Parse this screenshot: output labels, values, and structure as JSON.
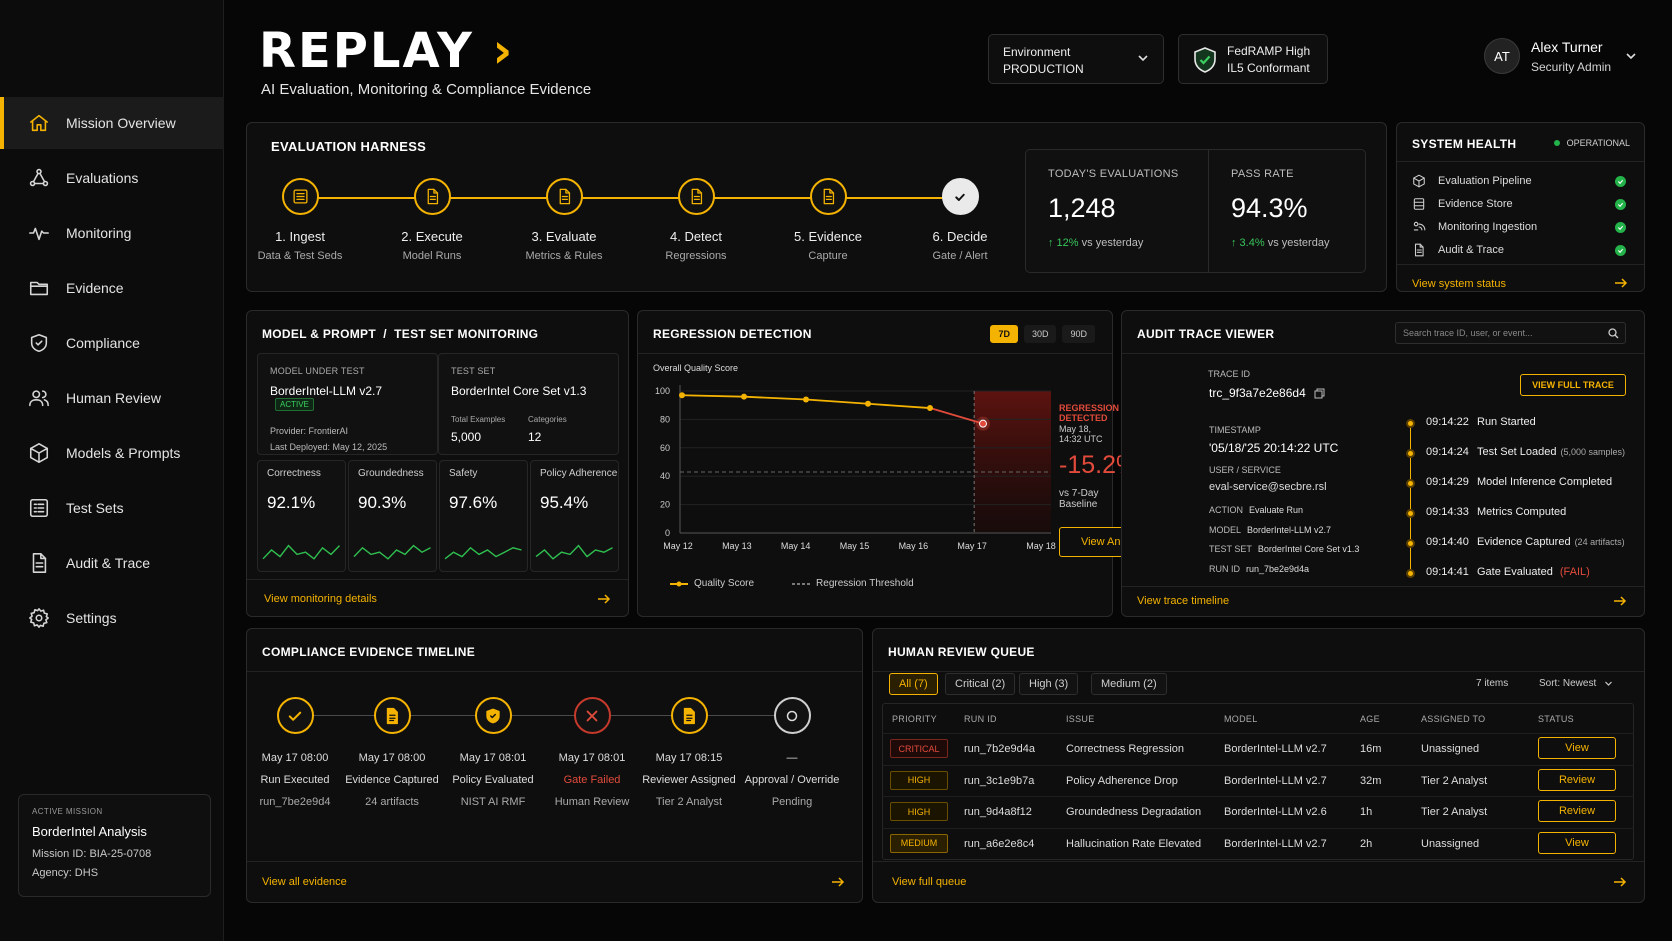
{
  "brand": {
    "name": "REPLAY",
    "chevron": "›",
    "tagline": "AI Evaluation, Monitoring & Compliance Evidence",
    "accent": "#f5b301"
  },
  "header": {
    "environment": {
      "label": "Environment",
      "value": "PRODUCTION"
    },
    "compliance_badge": {
      "line1": "FedRAMP High",
      "line2": "IL5 Conformant",
      "icon": "shield-check-icon"
    },
    "user": {
      "initials": "AT",
      "name": "Alex Turner",
      "role": "Security Admin"
    }
  },
  "sidebar": {
    "items": [
      {
        "label": "Mission Overview",
        "icon": "home-icon",
        "active": true
      },
      {
        "label": "Evaluations",
        "icon": "flask-icon"
      },
      {
        "label": "Monitoring",
        "icon": "pulse-icon"
      },
      {
        "label": "Evidence",
        "icon": "folder-icon"
      },
      {
        "label": "Compliance",
        "icon": "shield-icon"
      },
      {
        "label": "Human Review",
        "icon": "users-icon"
      },
      {
        "label": "Models & Prompts",
        "icon": "cube-icon"
      },
      {
        "label": "Test Sets",
        "icon": "list-icon"
      },
      {
        "label": "Audit & Trace",
        "icon": "document-icon"
      },
      {
        "label": "Settings",
        "icon": "gear-icon"
      }
    ],
    "mission": {
      "label": "ACTIVE MISSION",
      "name": "BorderIntel Analysis",
      "id_line": "Mission ID: BIA-25-0708",
      "agency_line": "Agency: DHS"
    }
  },
  "harness": {
    "title": "EVALUATION HARNESS",
    "steps": [
      {
        "title": "1. Ingest",
        "sub": "Data & Test Seds",
        "icon": "list-icon"
      },
      {
        "title": "2. Execute",
        "sub": "Model Runs",
        "icon": "document-icon"
      },
      {
        "title": "3. Evaluate",
        "sub": "Metrics & Rules",
        "icon": "document-icon"
      },
      {
        "title": "4. Detect",
        "sub": "Regressions",
        "icon": "document-icon"
      },
      {
        "title": "5. Evidence",
        "sub": "Capture",
        "icon": "document-icon"
      },
      {
        "title": "6. Decide",
        "sub": "Gate / Alert",
        "icon": "check-circle-icon"
      }
    ],
    "today": {
      "label": "TODAY'S EVALUATIONS",
      "value": "1,248",
      "delta": "↑ 12%",
      "delta_text": "vs yesterday"
    },
    "pass_rate": {
      "label": "PASS RATE",
      "value": "94.3%",
      "delta": "↑ 3.4%",
      "delta_text": "vs yesterday"
    }
  },
  "system_health": {
    "title": "SYSTEM HEALTH",
    "status": "OPERATIONAL",
    "items": [
      {
        "label": "Evaluation Pipeline",
        "icon": "cube-icon"
      },
      {
        "label": "Evidence Store",
        "icon": "database-icon"
      },
      {
        "label": "Monitoring Ingestion",
        "icon": "ingest-icon"
      },
      {
        "label": "Audit & Trace",
        "icon": "document-icon"
      }
    ],
    "link": "View system status"
  },
  "monitoring": {
    "title": "MODEL & PROMPT  /  TEST SET MONITORING",
    "model": {
      "label": "MODEL UNDER TEST",
      "name": "BorderIntel-LLM v2.7",
      "badge": "ACTIVE",
      "provider": "Provider: FrontierAI",
      "deployed": "Last Deployed:  May 12, 2025"
    },
    "testset": {
      "label": "TEST SET",
      "name": "BorderIntel Core Set v1.3",
      "examples_label": "Total Examples",
      "examples": "5,000",
      "categories_label": "Categories",
      "categories": "12"
    },
    "metrics": [
      {
        "label": "Correctness",
        "value": "92.1%"
      },
      {
        "label": "Groundedness",
        "value": "90.3%"
      },
      {
        "label": "Safety",
        "value": "97.6%"
      },
      {
        "label": "Policy Adherence",
        "value": "95.4%"
      }
    ],
    "link": "View monitoring details"
  },
  "regression": {
    "title": "REGRESSION DETECTION",
    "ranges": [
      "7D",
      "30D",
      "90D"
    ],
    "subtitle": "Overall Quality Score",
    "alert_title": "REGRESSION DETECTED",
    "alert_time": "May 18, 14:32 UTC",
    "delta": "-15.2%",
    "baseline": "vs 7-Day Baseline",
    "button": "View Analysis",
    "legend_quality": "Quality Score",
    "legend_threshold": "Regression Threshold"
  },
  "chart_data": {
    "type": "line",
    "title": "Overall Quality Score",
    "x": [
      "May 12",
      "May 13",
      "May 14",
      "May 15",
      "May 16",
      "May 17",
      "May 18"
    ],
    "series": [
      {
        "name": "Quality Score",
        "values": [
          null,
          97,
          96,
          94,
          91,
          88,
          77
        ]
      }
    ],
    "threshold": {
      "name": "Regression Threshold",
      "value": 43
    },
    "yticks": [
      0,
      20,
      40,
      60,
      80,
      100
    ],
    "ylim": [
      0,
      100
    ],
    "legend": "bottom"
  },
  "audit": {
    "title": "AUDIT TRACE VIEWER",
    "search_placeholder": "Search trace ID, user, or event...",
    "full_trace_button": "VIEW FULL TRACE",
    "trace_label": "TRACE ID",
    "trace_id": "trc_9f3a7e2e86d4",
    "timestamp_label": "TIMESTAMP",
    "timestamp": "'05/18/'25  20:14:22 UTC",
    "user_label": "USER / SERVICE",
    "user": "eval-service@secbre.rsl",
    "fields": [
      {
        "k": "ACTION",
        "v": "Evaluate Run"
      },
      {
        "k": "MODEL",
        "v": "BorderIntel-LLM v2.7"
      },
      {
        "k": "TEST SET",
        "v": "BorderIntel Core Set v1.3"
      },
      {
        "k": "RUN ID",
        "v": "run_7be2e9d4a"
      }
    ],
    "events": [
      {
        "time": "09:14:22",
        "event": "Run Started",
        "sub": "",
        "fail": ""
      },
      {
        "time": "09:14:24",
        "event": "Test Set Loaded",
        "sub": "(5,000 samples)",
        "fail": ""
      },
      {
        "time": "09:14:29",
        "event": "Model Inference Completed",
        "sub": "",
        "fail": ""
      },
      {
        "time": "09:14:33",
        "event": "Metrics Computed",
        "sub": "",
        "fail": ""
      },
      {
        "time": "09:14:40",
        "event": "Evidence Captured",
        "sub": "(24 artifacts)",
        "fail": ""
      },
      {
        "time": "09:14:41",
        "event": "Gate Evaluated",
        "sub": "",
        "fail": "(FAIL)"
      }
    ],
    "link": "View trace timeline"
  },
  "compliance": {
    "title": "COMPLIANCE EVIDENCE TIMELINE",
    "steps": [
      {
        "time": "May 17 08:00",
        "event": "Run Executed",
        "detail": "run_7be2e9d4",
        "icon": "check-icon",
        "state": "ok"
      },
      {
        "time": "May 17 08:00",
        "event": "Evidence Captured",
        "detail": "24 artifacts",
        "icon": "document-icon",
        "state": "ok"
      },
      {
        "time": "May 17 08:01",
        "event": "Policy Evaluated",
        "detail": "NIST AI RMF",
        "icon": "shield-icon",
        "state": "ok"
      },
      {
        "time": "May 17 08:01",
        "event": "Gate Failed",
        "detail": "Human Review",
        "icon": "x-icon",
        "state": "fail"
      },
      {
        "time": "May 17 08:15",
        "event": "Reviewer Assigned",
        "detail": "Tier 2 Analyst",
        "icon": "document-icon",
        "state": "ok"
      },
      {
        "time": "—",
        "event": "Approval / Override",
        "detail": "Pending",
        "icon": "circle-icon",
        "state": "pending"
      }
    ],
    "link": "View all evidence"
  },
  "review": {
    "title": "HUMAN REVIEW QUEUE",
    "tabs": [
      "All (7)",
      "Critical (2)",
      "High (3)",
      "Medium (2)"
    ],
    "count": "7 items",
    "sort": "Sort: Newest",
    "columns": [
      "PRIORITY",
      "RUN ID",
      "ISSUE",
      "MODEL",
      "AGE",
      "ASSIGNED TO",
      "STATUS"
    ],
    "rows": [
      {
        "priority": "CRITICAL",
        "run": "run_7b2e9d4a",
        "issue": "Correctness Regression",
        "model": "BorderIntel-LLM v2.7",
        "age": "16m",
        "assigned": "Unassigned",
        "action": "View"
      },
      {
        "priority": "HIGH",
        "run": "run_3c1e9b7a",
        "issue": "Policy Adherence Drop",
        "model": "BorderIntel-LLM v2.7",
        "age": "32m",
        "assigned": "Tier 2 Analyst",
        "action": "Review"
      },
      {
        "priority": "HIGH",
        "run": "run_9d4a8f12",
        "issue": "Groundedness Degradation",
        "model": "BorderIntel-LLM v2.6",
        "age": "1h",
        "assigned": "Tier 2 Analyst",
        "action": "Review"
      },
      {
        "priority": "MEDIUM",
        "run": "run_a6e2e8c4",
        "issue": "Hallucination Rate Elevated",
        "model": "BorderIntel-LLM v2.7",
        "age": "2h",
        "assigned": "Unassigned",
        "action": "View"
      }
    ],
    "link": "View full queue"
  }
}
